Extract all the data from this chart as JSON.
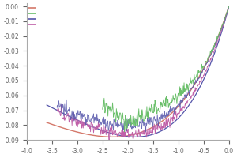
{
  "xlim": [
    -4.0,
    0.0
  ],
  "ylim": [
    -0.09,
    0.002
  ],
  "xticks": [
    -4.0,
    -3.5,
    -3.0,
    -2.5,
    -2.0,
    -1.5,
    -1.0,
    -0.5,
    0.0
  ],
  "yticks": [
    0.0,
    -0.01,
    -0.02,
    -0.03,
    -0.04,
    -0.05,
    -0.06,
    -0.07,
    -0.08,
    -0.09
  ],
  "colors": {
    "orange": "#d4786a",
    "green": "#6abf6a",
    "blue": "#5555aa",
    "pink": "#c060a8"
  },
  "figsize": [
    3.0,
    2.0
  ],
  "dpi": 100,
  "spine_color": "#aaaaaa",
  "tick_color": "#666666"
}
